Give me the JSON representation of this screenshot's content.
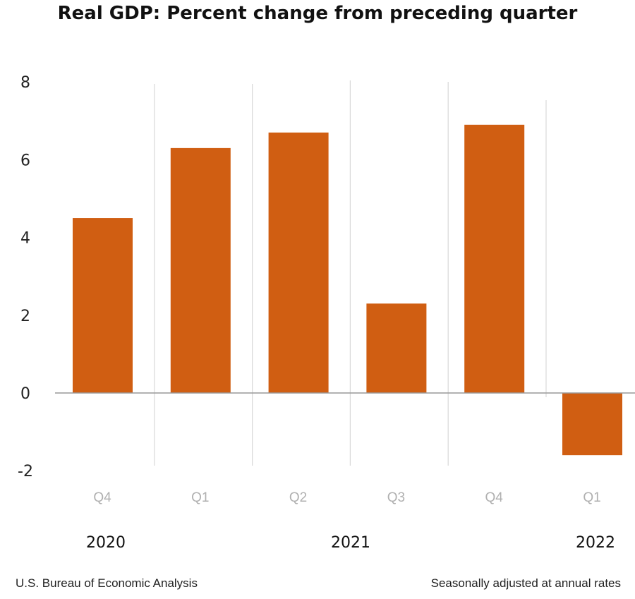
{
  "chart_data": {
    "type": "bar",
    "title": "Real GDP:  Percent change from preceding quarter",
    "categories": [
      "Q4",
      "Q1",
      "Q2",
      "Q3",
      "Q4",
      "Q1"
    ],
    "years": [
      {
        "label": "2020",
        "under_category_index": 0
      },
      {
        "label": "2021",
        "under_category_index": 2.5
      },
      {
        "label": "2022",
        "under_category_index": 5
      }
    ],
    "values": [
      4.5,
      6.3,
      6.7,
      2.3,
      6.9,
      -1.6
    ],
    "ylim": [
      -2,
      8
    ],
    "yticks": [
      8,
      6,
      4,
      2,
      0,
      -2
    ],
    "grid": "vertical separators between quarters",
    "bar_color": "#d05e12",
    "xlabel": "",
    "ylabel": ""
  },
  "footer": {
    "source": "U.S. Bureau of Economic Analysis",
    "note": "Seasonally adjusted at annual rates"
  }
}
